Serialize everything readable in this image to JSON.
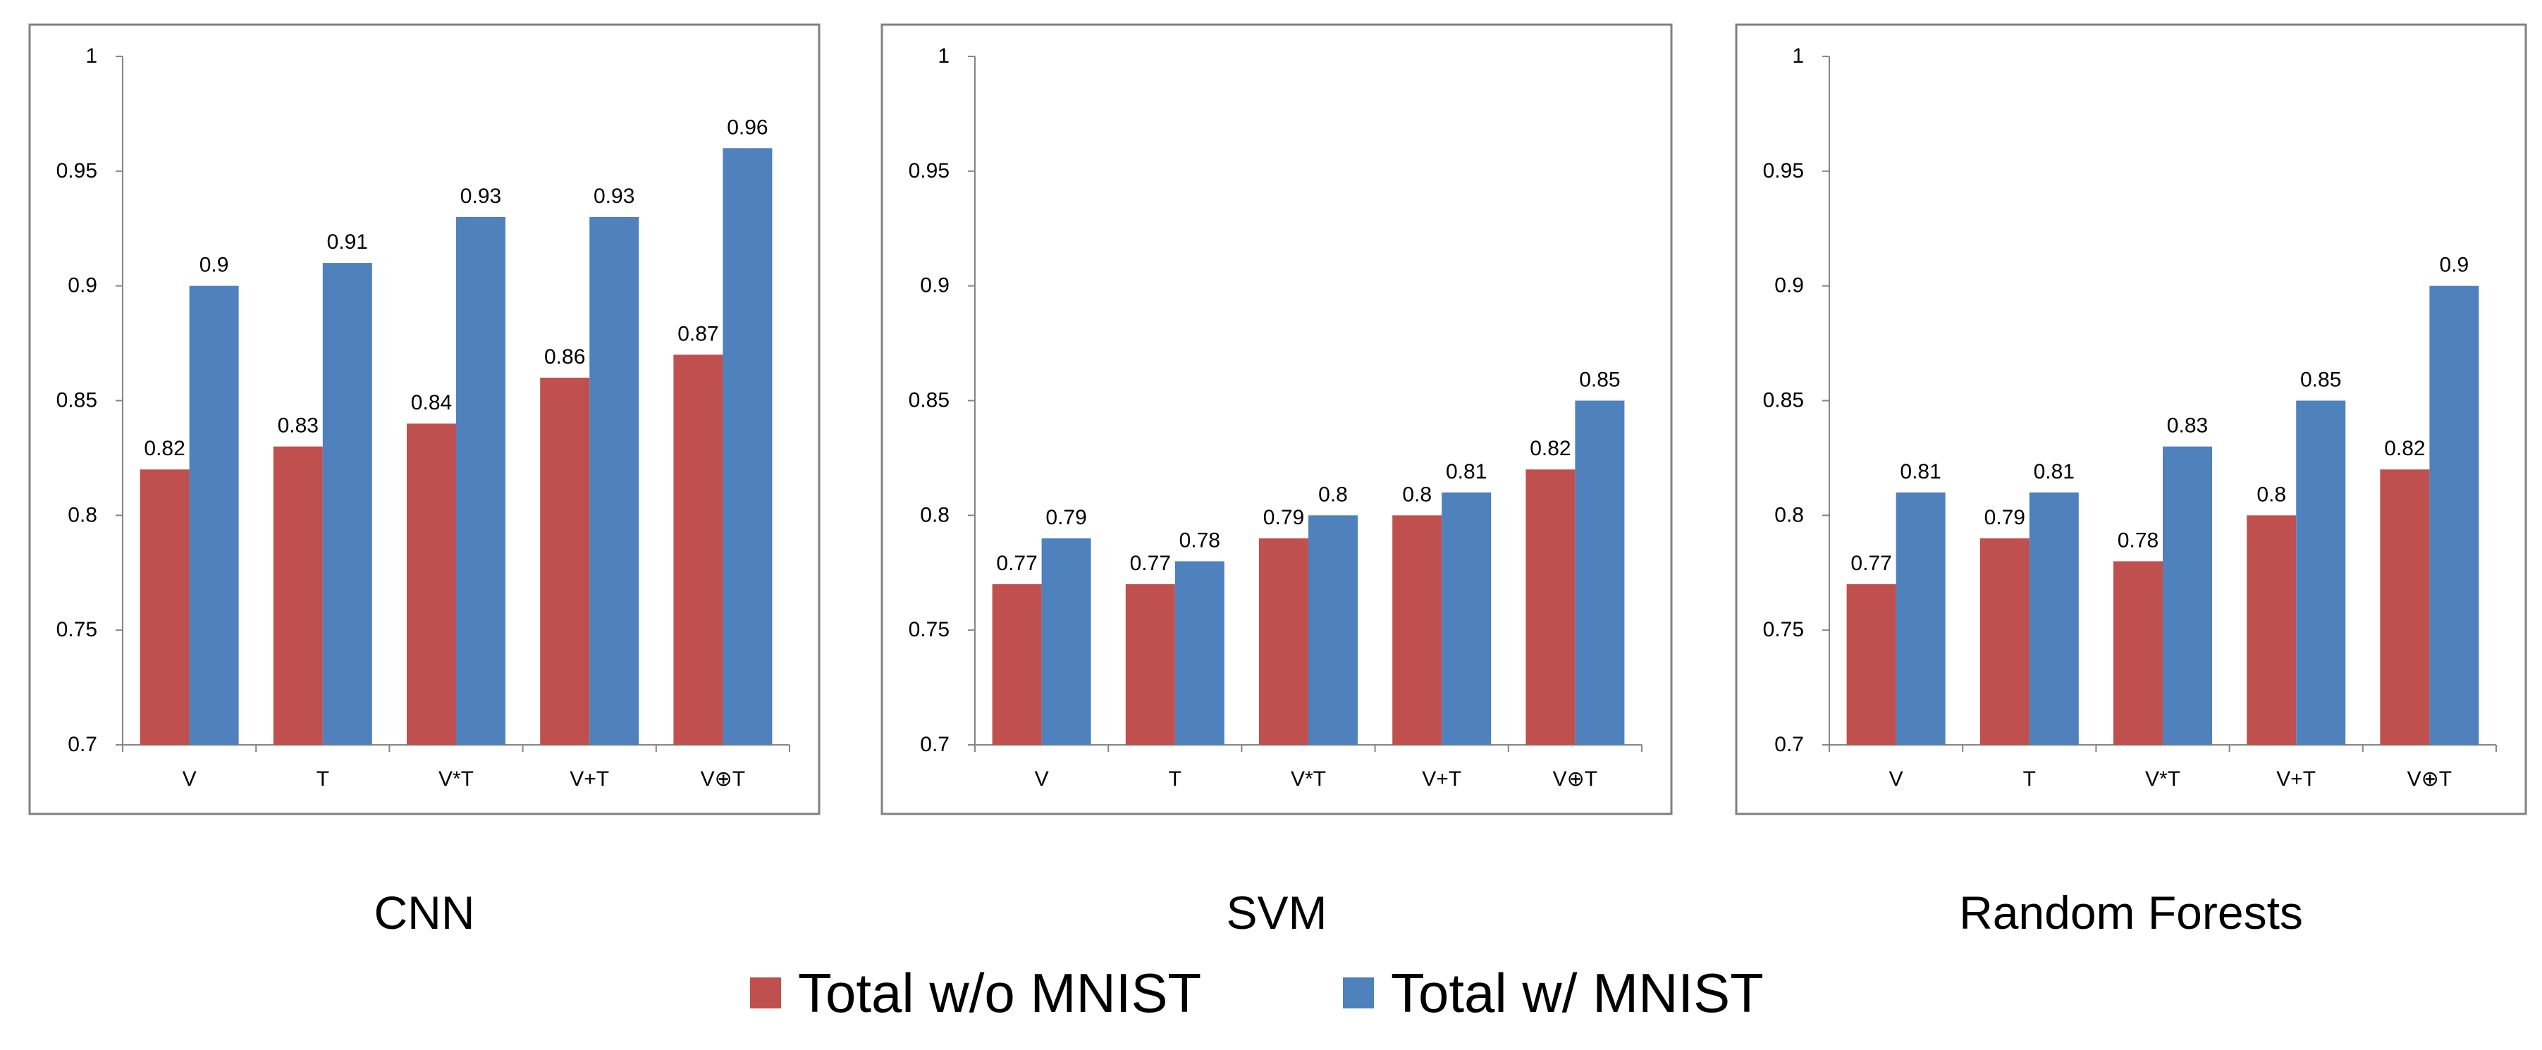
{
  "colors": {
    "series_0": "#c0504d",
    "series_1": "#4f81bd"
  },
  "legend": {
    "items": [
      {
        "label": "Total w/o MNIST",
        "color": "#c0504d"
      },
      {
        "label": "Total w/ MNIST",
        "color": "#4f81bd"
      }
    ]
  },
  "chart_data": [
    {
      "type": "bar",
      "title": "CNN",
      "categories": [
        "V",
        "T",
        "V*T",
        "V+T",
        "V⊕T"
      ],
      "series": [
        {
          "name": "Total w/o MNIST",
          "values": [
            0.82,
            0.83,
            0.84,
            0.86,
            0.87
          ]
        },
        {
          "name": "Total w/ MNIST",
          "values": [
            0.9,
            0.91,
            0.93,
            0.93,
            0.96
          ]
        }
      ],
      "ylim": [
        0.7,
        1
      ],
      "yticks": [
        "0.7",
        "0.75",
        "0.8",
        "0.85",
        "0.9",
        "0.95",
        "1"
      ],
      "xlabel": "",
      "ylabel": "",
      "grid": false
    },
    {
      "type": "bar",
      "title": "SVM",
      "categories": [
        "V",
        "T",
        "V*T",
        "V+T",
        "V⊕T"
      ],
      "series": [
        {
          "name": "Total w/o MNIST",
          "values": [
            0.77,
            0.77,
            0.79,
            0.8,
            0.82
          ]
        },
        {
          "name": "Total w/ MNIST",
          "values": [
            0.79,
            0.78,
            0.8,
            0.81,
            0.85
          ]
        }
      ],
      "ylim": [
        0.7,
        1
      ],
      "yticks": [
        "0.7",
        "0.75",
        "0.8",
        "0.85",
        "0.9",
        "0.95",
        "1"
      ],
      "xlabel": "",
      "ylabel": "",
      "grid": false
    },
    {
      "type": "bar",
      "title": "Random Forests",
      "categories": [
        "V",
        "T",
        "V*T",
        "V+T",
        "V⊕T"
      ],
      "series": [
        {
          "name": "Total w/o MNIST",
          "values": [
            0.77,
            0.79,
            0.78,
            0.8,
            0.82
          ]
        },
        {
          "name": "Total w/ MNIST",
          "values": [
            0.81,
            0.81,
            0.83,
            0.85,
            0.9
          ]
        }
      ],
      "ylim": [
        0.7,
        1
      ],
      "yticks": [
        "0.7",
        "0.75",
        "0.8",
        "0.85",
        "0.9",
        "0.95",
        "1"
      ],
      "xlabel": "",
      "ylabel": "",
      "grid": false
    }
  ]
}
